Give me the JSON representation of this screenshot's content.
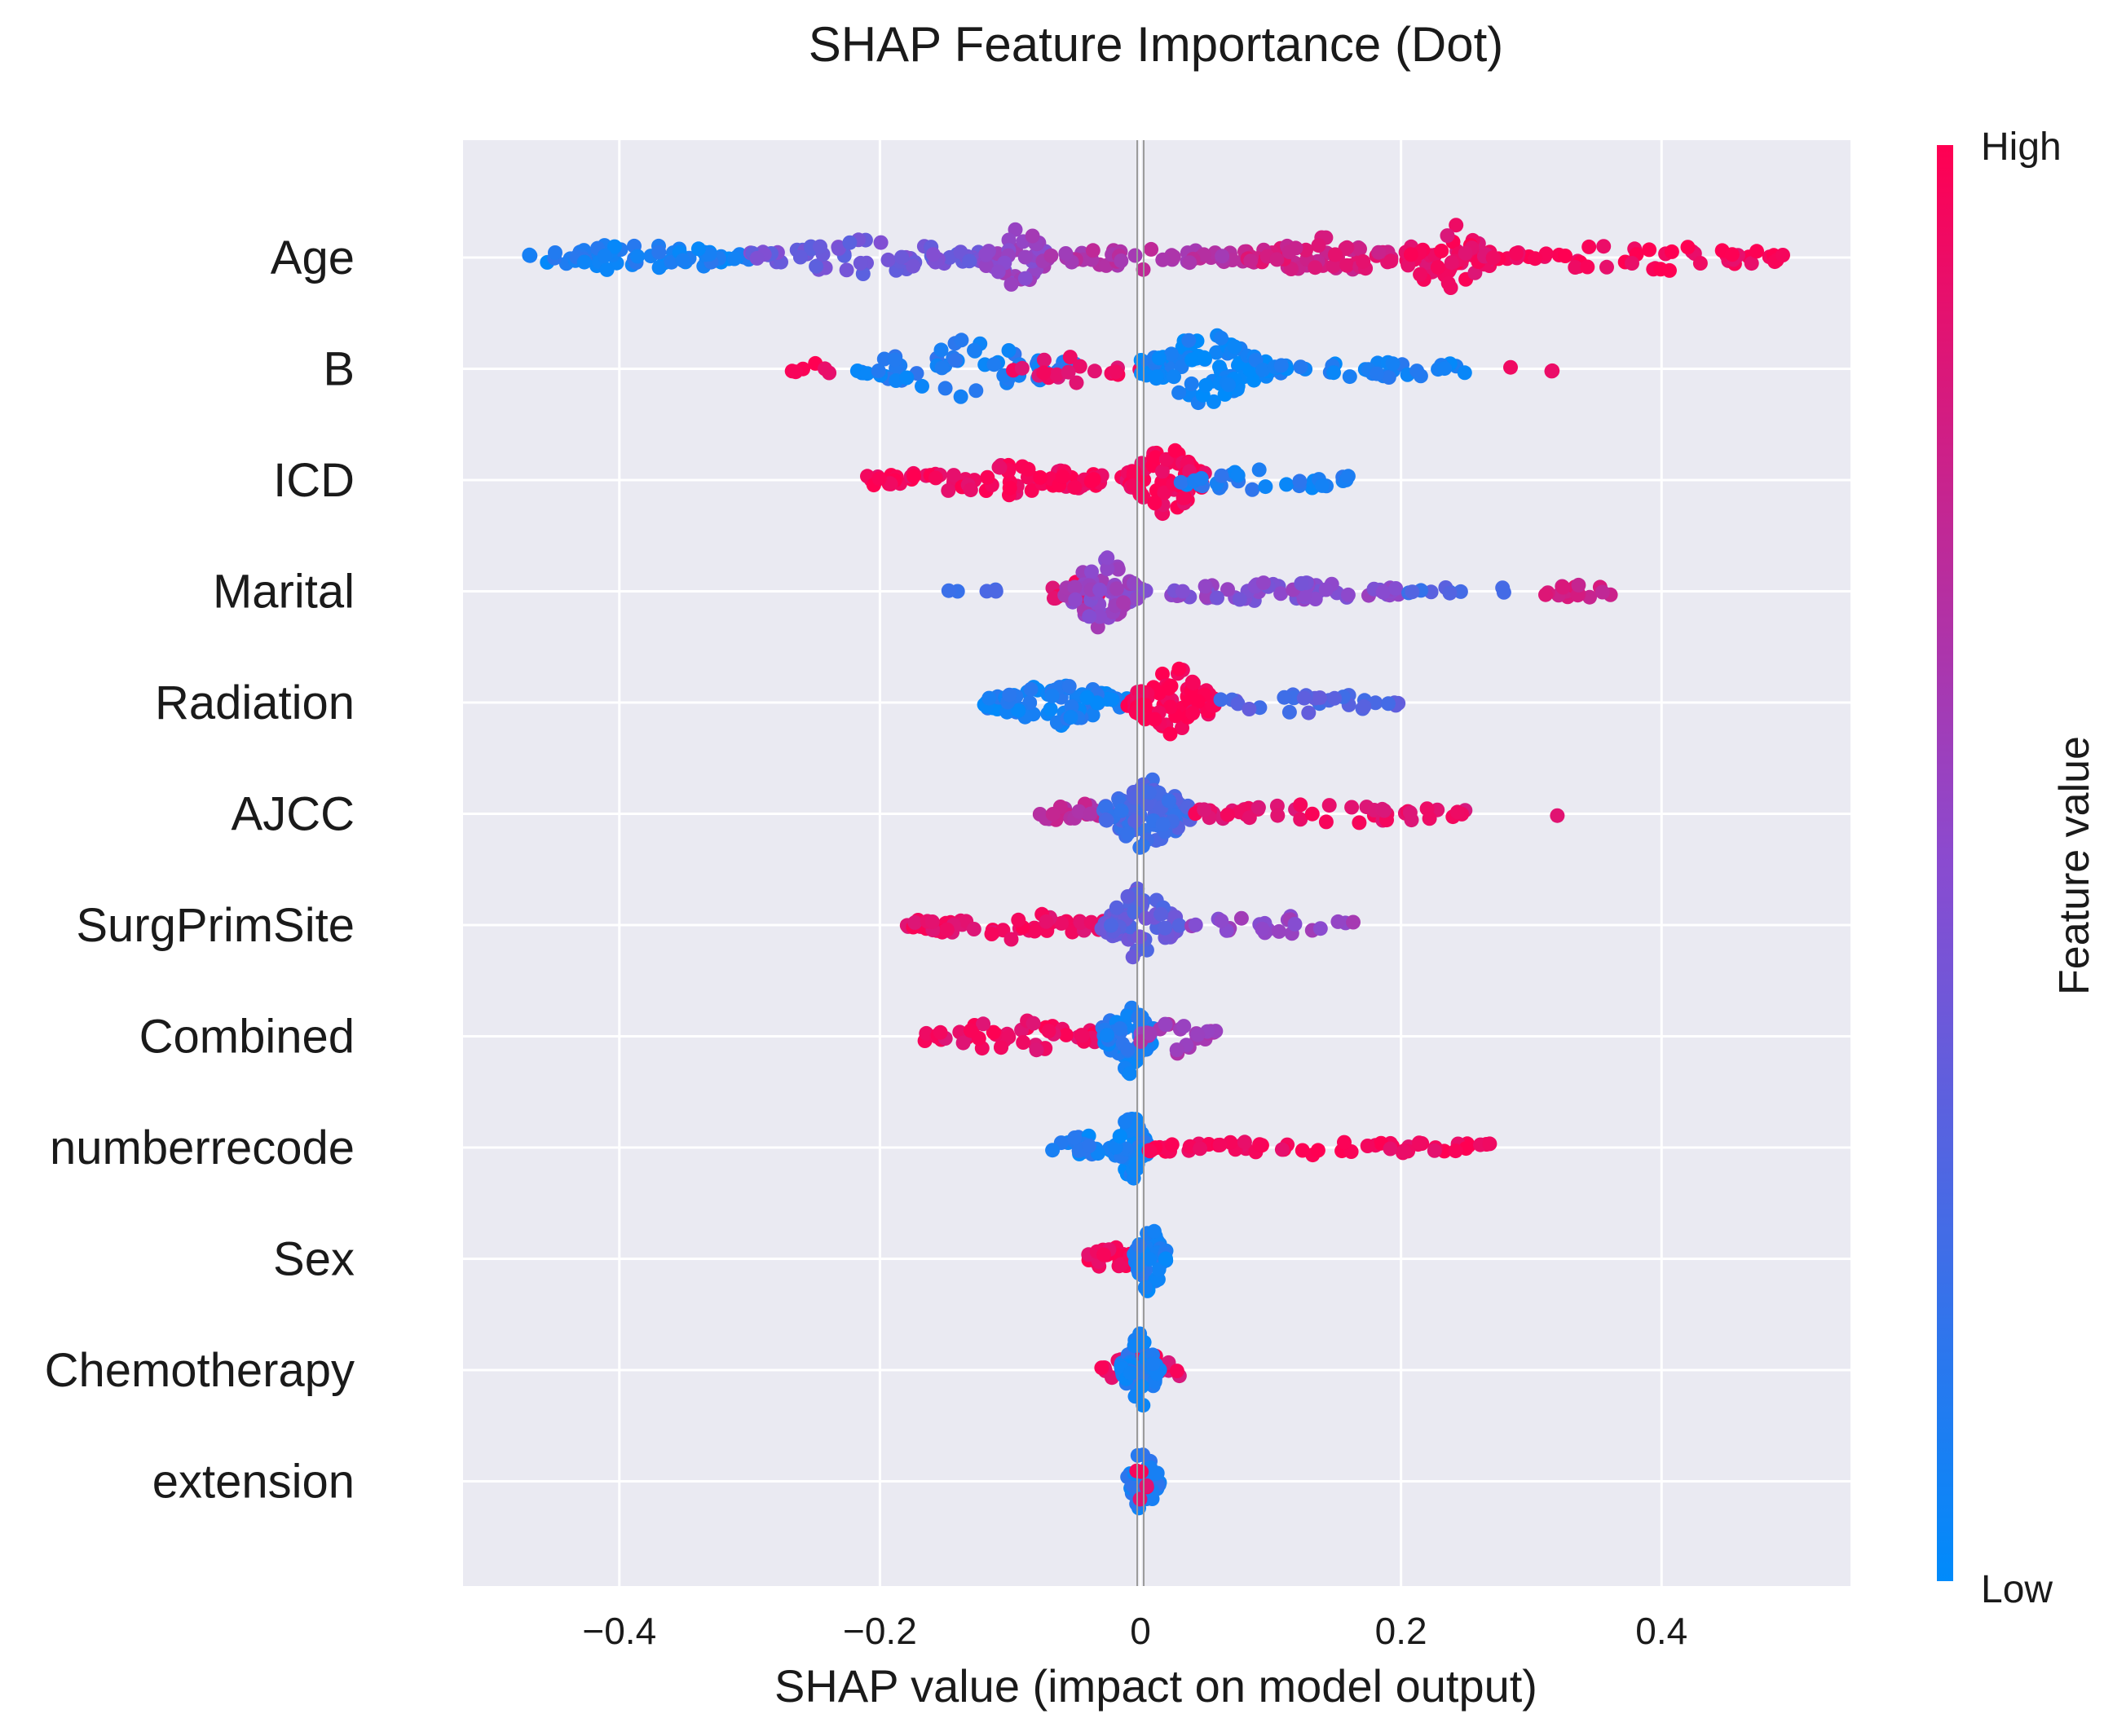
{
  "chart_data": {
    "type": "scatter",
    "subtype": "shap-beeswarm",
    "title": "SHAP Feature Importance (Dot)",
    "xlabel": "SHAP value (impact on model output)",
    "ylabel": "",
    "xlim": [
      -0.52,
      0.545
    ],
    "xticks": [
      -0.4,
      -0.2,
      0,
      0.2,
      0.4
    ],
    "xtick_labels": [
      "−0.4",
      "−0.2",
      "0",
      "0.2",
      "0.4"
    ],
    "grid": true,
    "colorbar": {
      "label": "Feature value",
      "high_label": "High",
      "low_label": "Low",
      "low_color": "#008bfb",
      "high_color": "#ff0052"
    },
    "features": [
      {
        "name": "Age",
        "min": -0.47,
        "max": 0.5,
        "clusters": [
          {
            "range": [
              -0.47,
              -0.3
            ],
            "color": 0.08,
            "n": 70,
            "spread": 0.35
          },
          {
            "range": [
              -0.3,
              -0.12
            ],
            "color": 0.4,
            "n": 70,
            "spread": 0.45
          },
          {
            "range": [
              -0.12,
              -0.07
            ],
            "color": 0.55,
            "n": 45,
            "spread": 1.0
          },
          {
            "range": [
              -0.07,
              0.08
            ],
            "color": 0.65,
            "n": 45,
            "spread": 0.25
          },
          {
            "range": [
              0.08,
              0.2
            ],
            "color": 0.82,
            "n": 60,
            "spread": 0.5
          },
          {
            "range": [
              0.2,
              0.27
            ],
            "color": 0.92,
            "n": 55,
            "spread": 1.0
          },
          {
            "range": [
              0.27,
              0.5
            ],
            "color": 0.97,
            "n": 55,
            "spread": 0.35
          }
        ]
      },
      {
        "name": "B",
        "min": -0.28,
        "max": 0.32,
        "clusters": [
          {
            "range": [
              -0.28,
              -0.23
            ],
            "color": 0.95,
            "n": 6,
            "spread": 0.1
          },
          {
            "range": [
              -0.22,
              -0.05
            ],
            "color": 0.1,
            "n": 60,
            "spread": 0.7
          },
          {
            "range": [
              -0.1,
              0.0
            ],
            "color": 0.9,
            "n": 20,
            "spread": 0.3
          },
          {
            "range": [
              0.0,
              0.1
            ],
            "color": 0.05,
            "n": 95,
            "spread": 1.0
          },
          {
            "range": [
              0.1,
              0.26
            ],
            "color": 0.08,
            "n": 35,
            "spread": 0.2
          },
          {
            "range": [
              0.28,
              0.32
            ],
            "color": 0.95,
            "n": 3,
            "spread": 0.0
          }
        ]
      },
      {
        "name": "ICD",
        "min": -0.21,
        "max": 0.16,
        "clusters": [
          {
            "range": [
              -0.21,
              -0.01
            ],
            "color": 0.96,
            "n": 85,
            "spread": 0.35
          },
          {
            "range": [
              -0.01,
              0.05
            ],
            "color": 0.96,
            "n": 70,
            "spread": 1.0
          },
          {
            "range": [
              0.03,
              0.16
            ],
            "color": 0.1,
            "n": 30,
            "spread": 0.3
          }
        ]
      },
      {
        "name": "Marital",
        "min": -0.15,
        "max": 0.37,
        "clusters": [
          {
            "range": [
              -0.15,
              -0.11
            ],
            "color": 0.2,
            "n": 5,
            "spread": 0.0
          },
          {
            "range": [
              -0.08,
              -0.03
            ],
            "color": 0.9,
            "n": 15,
            "spread": 0.2
          },
          {
            "range": [
              -0.06,
              0.0
            ],
            "color": 0.55,
            "n": 70,
            "spread": 1.0
          },
          {
            "range": [
              0.0,
              0.2
            ],
            "color": 0.5,
            "n": 60,
            "spread": 0.2
          },
          {
            "range": [
              0.2,
              0.29
            ],
            "color": 0.25,
            "n": 10,
            "spread": 0.05
          },
          {
            "range": [
              0.3,
              0.37
            ],
            "color": 0.8,
            "n": 15,
            "spread": 0.1
          }
        ]
      },
      {
        "name": "Radiation",
        "min": -0.12,
        "max": 0.2,
        "clusters": [
          {
            "range": [
              -0.12,
              -0.01
            ],
            "color": 0.08,
            "n": 80,
            "spread": 0.6
          },
          {
            "range": [
              -0.01,
              0.06
            ],
            "color": 0.97,
            "n": 80,
            "spread": 1.0
          },
          {
            "range": [
              0.05,
              0.2
            ],
            "color": 0.3,
            "n": 30,
            "spread": 0.2
          }
        ]
      },
      {
        "name": "AJCC",
        "min": -0.08,
        "max": 0.33,
        "clusters": [
          {
            "range": [
              -0.08,
              -0.02
            ],
            "color": 0.7,
            "n": 25,
            "spread": 0.25
          },
          {
            "range": [
              -0.03,
              0.04
            ],
            "color": 0.25,
            "n": 80,
            "spread": 1.0
          },
          {
            "range": [
              0.04,
              0.25
            ],
            "color": 0.9,
            "n": 45,
            "spread": 0.2
          },
          {
            "range": [
              0.32,
              0.33
            ],
            "color": 0.95,
            "n": 1,
            "spread": 0.0
          }
        ]
      },
      {
        "name": "SurgPrimSite",
        "min": -0.18,
        "max": 0.17,
        "clusters": [
          {
            "range": [
              -0.18,
              -0.02
            ],
            "color": 0.93,
            "n": 60,
            "spread": 0.3
          },
          {
            "range": [
              -0.03,
              0.03
            ],
            "color": 0.35,
            "n": 65,
            "spread": 1.0
          },
          {
            "range": [
              0.03,
              0.17
            ],
            "color": 0.55,
            "n": 25,
            "spread": 0.2
          }
        ]
      },
      {
        "name": "Combined",
        "min": -0.17,
        "max": 0.06,
        "clusters": [
          {
            "range": [
              -0.17,
              -0.02
            ],
            "color": 0.93,
            "n": 50,
            "spread": 0.4
          },
          {
            "range": [
              -0.03,
              0.01
            ],
            "color": 0.1,
            "n": 60,
            "spread": 1.0
          },
          {
            "range": [
              0.0,
              0.06
            ],
            "color": 0.6,
            "n": 25,
            "spread": 0.4
          }
        ]
      },
      {
        "name": "numberrecode",
        "min": -0.07,
        "max": 0.27,
        "clusters": [
          {
            "range": [
              -0.07,
              -0.02
            ],
            "color": 0.08,
            "n": 20,
            "spread": 0.3
          },
          {
            "range": [
              -0.02,
              0.005
            ],
            "color": 0.08,
            "n": 55,
            "spread": 1.0
          },
          {
            "range": [
              0.005,
              0.27
            ],
            "color": 0.96,
            "n": 60,
            "spread": 0.12
          }
        ]
      },
      {
        "name": "Sex",
        "min": -0.04,
        "max": 0.02,
        "clusters": [
          {
            "range": [
              -0.04,
              -0.005
            ],
            "color": 0.95,
            "n": 30,
            "spread": 0.3
          },
          {
            "range": [
              -0.005,
              0.02
            ],
            "color": 0.08,
            "n": 50,
            "spread": 1.0
          }
        ]
      },
      {
        "name": "Chemotherapy",
        "min": -0.03,
        "max": 0.03,
        "clusters": [
          {
            "range": [
              -0.03,
              0.03
            ],
            "color": 0.9,
            "n": 30,
            "spread": 0.5
          },
          {
            "range": [
              -0.015,
              0.015
            ],
            "color": 0.1,
            "n": 50,
            "spread": 1.0
          }
        ]
      },
      {
        "name": "extension",
        "min": -0.01,
        "max": 0.015,
        "clusters": [
          {
            "range": [
              -0.01,
              0.015
            ],
            "color": 0.1,
            "n": 45,
            "spread": 1.0
          },
          {
            "range": [
              -0.005,
              0.005
            ],
            "color": 0.9,
            "n": 5,
            "spread": 0.6
          }
        ]
      }
    ]
  }
}
